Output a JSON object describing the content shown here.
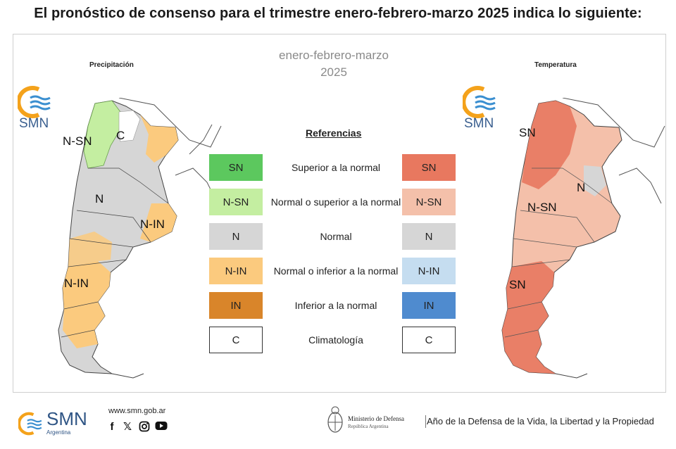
{
  "headline": "El pronóstico de consenso para el trimestre enero-febrero-marzo 2025 indica lo siguiente:",
  "period": {
    "line1": "enero-febrero-marzo",
    "line2": "2025"
  },
  "precip_map": {
    "title": "Precipitación",
    "labels": [
      "N-SN",
      "C",
      "N",
      "N-IN",
      "N-IN"
    ]
  },
  "temp_map": {
    "title": "Temperatura",
    "labels": [
      "SN",
      "N",
      "N-SN",
      "SN"
    ]
  },
  "logo_text": "SMN",
  "references": {
    "title": "Referencias",
    "rows": [
      {
        "code": "SN",
        "label": "Superior a la normal",
        "precip_color": "#5cc85e",
        "temp_color": "#e8785f"
      },
      {
        "code": "N-SN",
        "label": "Normal o superior a la normal",
        "precip_color": "#c4eea1",
        "temp_color": "#f4c0aa"
      },
      {
        "code": "N",
        "label": "Normal",
        "precip_color": "#d6d6d6",
        "temp_color": "#d6d6d6"
      },
      {
        "code": "N-IN",
        "label": "Normal o inferior a la normal",
        "precip_color": "#fbca7e",
        "temp_color": "#c5ddf0"
      },
      {
        "code": "IN",
        "label": "Inferior a la normal",
        "precip_color": "#d9852a",
        "temp_color": "#4f8bcf"
      },
      {
        "code": "C",
        "label": "Climatología",
        "precip_color": "#ffffff",
        "temp_color": "#ffffff"
      }
    ]
  },
  "footer": {
    "smn": "SMN",
    "argentina": "Argentina",
    "url": "www.smn.gob.ar",
    "social_icons": [
      "facebook-icon",
      "x-icon",
      "instagram-icon",
      "youtube-icon"
    ],
    "ministry_name": "Ministerio de Defensa",
    "ministry_sub": "República Argentina",
    "motto": "Año de la Defensa de la Vida, la Libertad y la Propiedad"
  }
}
